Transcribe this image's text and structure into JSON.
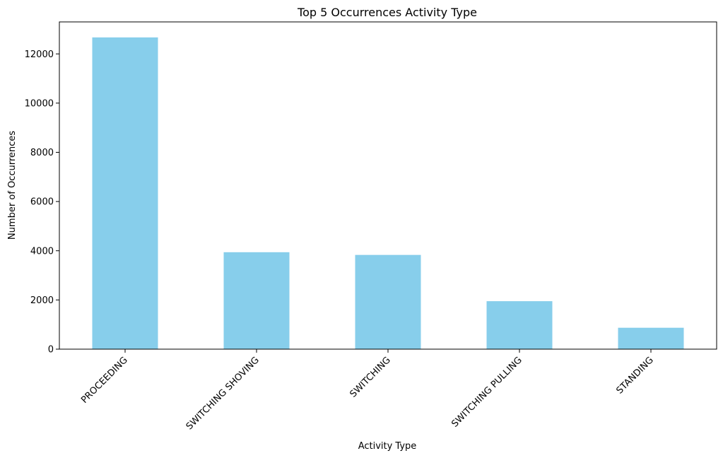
{
  "chart_data": {
    "type": "bar",
    "title": "Top 5 Occurrences Activity Type",
    "xlabel": "Activity Type",
    "ylabel": "Number of Occurrences",
    "categories": [
      "PROCEEDING",
      "SWITCHING SHOVING",
      "SWITCHING",
      "SWITCHING PULLING",
      "STANDING"
    ],
    "values": [
      12670,
      3940,
      3830,
      1950,
      870
    ],
    "ylim": [
      0,
      13300
    ],
    "yticks": [
      0,
      2000,
      4000,
      6000,
      8000,
      10000,
      12000
    ],
    "bar_color": "#87ceeb",
    "grid": false,
    "legend": "none"
  }
}
